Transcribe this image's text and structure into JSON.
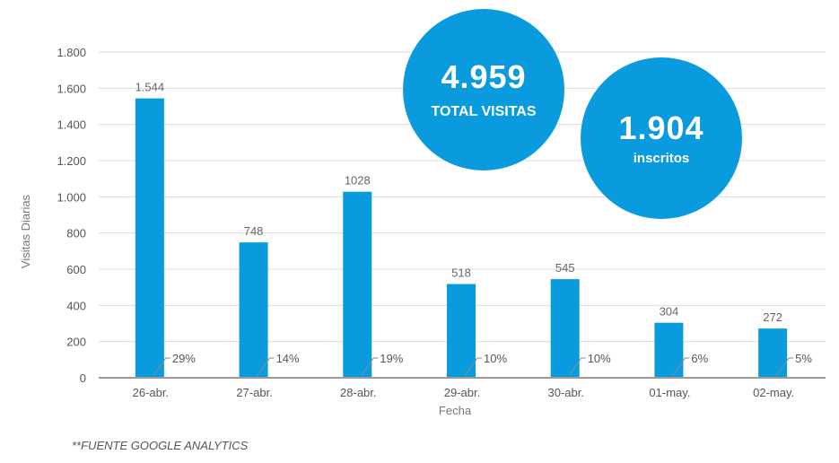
{
  "chart_data": {
    "type": "bar",
    "categories": [
      "26-abr.",
      "27-abr.",
      "28-abr.",
      "29-abr.",
      "30-abr.",
      "01-may.",
      "02-may."
    ],
    "values": [
      1544,
      748,
      1028,
      518,
      545,
      304,
      272
    ],
    "value_labels": [
      "1.544",
      "748",
      "1028",
      "518",
      "545",
      "304",
      "272"
    ],
    "percent_labels": [
      "29%",
      "14%",
      "19%",
      "10%",
      "10%",
      "6%",
      "5%"
    ],
    "yticks": [
      0,
      200,
      400,
      600,
      800,
      1000,
      1200,
      1400,
      1600,
      1800
    ],
    "ytick_labels": [
      "0",
      "200",
      "400",
      "600",
      "800",
      "1.000",
      "1.200",
      "1.400",
      "1.600",
      "1.800"
    ],
    "ylim": [
      0,
      1800
    ],
    "xlabel": "Fecha",
    "ylabel": "Visitas Diarias",
    "grid": true,
    "bar_color": "#0a9ade"
  },
  "callouts": {
    "total": {
      "value": "4.959",
      "label": "TOTAL VISITAS"
    },
    "inscritos": {
      "value": "1.904",
      "label": "inscritos"
    }
  },
  "footer": {
    "source": "**FUENTE GOOGLE ANALYTICS"
  }
}
